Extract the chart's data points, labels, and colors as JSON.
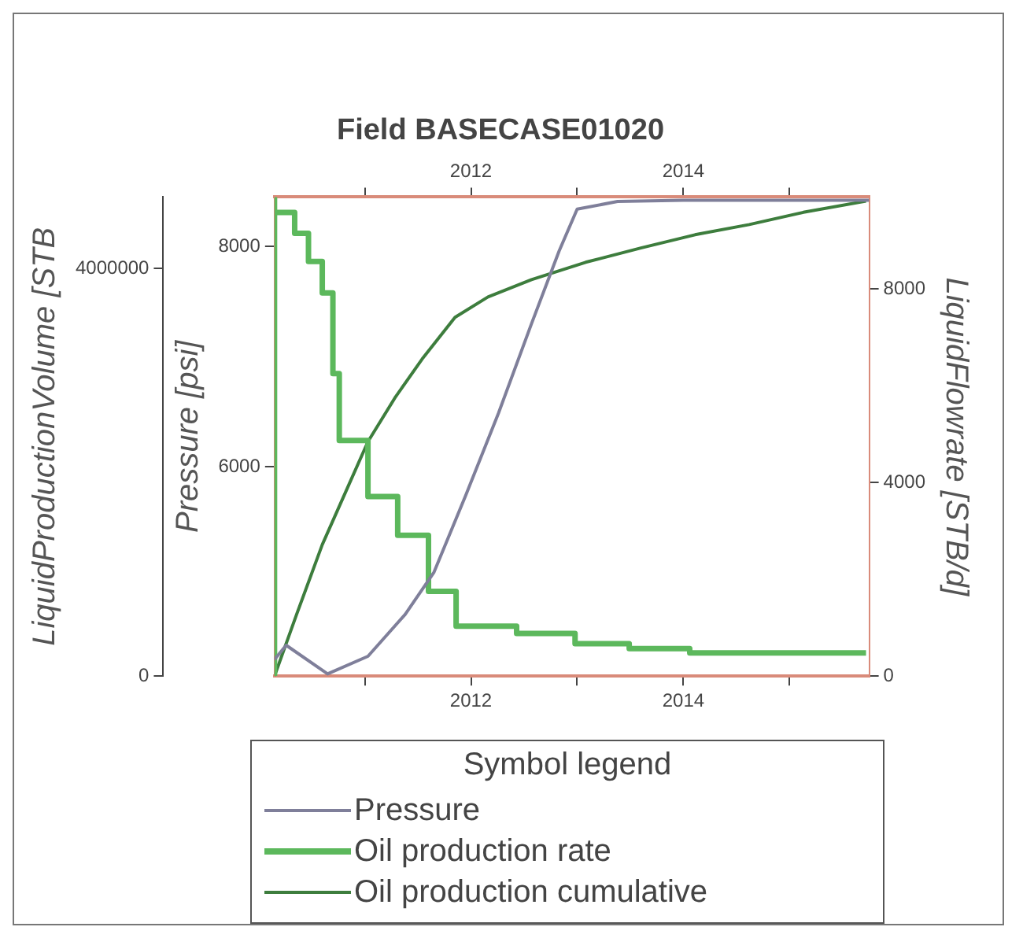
{
  "chart_data": {
    "type": "line",
    "title": "Field BASECASE01020",
    "ylabel": "Pressure [psi]",
    "y2label": "LiquidFlowrate [STB/d]",
    "y3label": "LiquidProductionVolume [STB",
    "legend_title": "Symbol legend",
    "legend": "bottom",
    "marker": "none",
    "xlim": [
      2010.15,
      2015.75
    ],
    "xticks": [
      {
        "value": 2011,
        "label": null
      },
      2012,
      {
        "value": 2013,
        "label": null
      },
      2014,
      {
        "value": 2015,
        "label": null
      }
    ],
    "x2lim": [
      2010.15,
      2015.75
    ],
    "x2ticks": [
      {
        "value": 2011,
        "label": null
      },
      2012,
      {
        "value": 2013,
        "label": null
      },
      2014,
      {
        "value": 2015,
        "label": null
      }
    ],
    "ylim": [
      4100,
      8450
    ],
    "yticks": [
      6000,
      8000
    ],
    "y2lim": [
      0,
      9900
    ],
    "y2ticks": [
      0,
      4000,
      8000
    ],
    "y3lim": [
      0,
      4700000
    ],
    "y3ticks": [
      0,
      4000000
    ],
    "series": [
      {
        "name": "Pressure",
        "axis": "y",
        "color": "#7f7f9a",
        "x": [
          2010.15,
          2010.26,
          2010.65,
          2011.03,
          2011.38,
          2011.65,
          2011.95,
          2012.26,
          2012.57,
          2012.83,
          2013.0,
          2013.38,
          2014.0,
          2015.75
        ],
        "values": [
          4250,
          4380,
          4120,
          4280,
          4660,
          5040,
          5740,
          6490,
          7300,
          7960,
          8340,
          8410,
          8420,
          8420
        ]
      },
      {
        "name": "Oil production rate",
        "type": "step",
        "axis": "y2",
        "color": "#5cb85c",
        "x": [
          2010.15,
          2010.15,
          2010.34,
          2010.47,
          2010.6,
          2010.7,
          2010.76,
          2011.03,
          2011.31,
          2011.6,
          2011.86,
          2012.43,
          2012.98,
          2013.49,
          2014.06,
          2014.62,
          2015.72
        ],
        "values": [
          0,
          9900,
          9580,
          9150,
          8570,
          7920,
          6250,
          4870,
          3710,
          2910,
          1750,
          1030,
          880,
          670,
          570,
          480,
          480
        ]
      },
      {
        "name": "Oil production cumulative",
        "axis": "y3",
        "color": "#3d7d3d",
        "x": [
          2010.15,
          2010.36,
          2010.6,
          2010.83,
          2011.03,
          2011.29,
          2011.54,
          2011.85,
          2012.16,
          2012.57,
          2013.08,
          2013.6,
          2014.11,
          2014.62,
          2015.13,
          2015.72
        ],
        "values": [
          0,
          610000,
          1290000,
          1830000,
          2300000,
          2740000,
          3110000,
          3520000,
          3720000,
          3890000,
          4060000,
          4200000,
          4330000,
          4430000,
          4550000,
          4660000
        ]
      }
    ]
  }
}
